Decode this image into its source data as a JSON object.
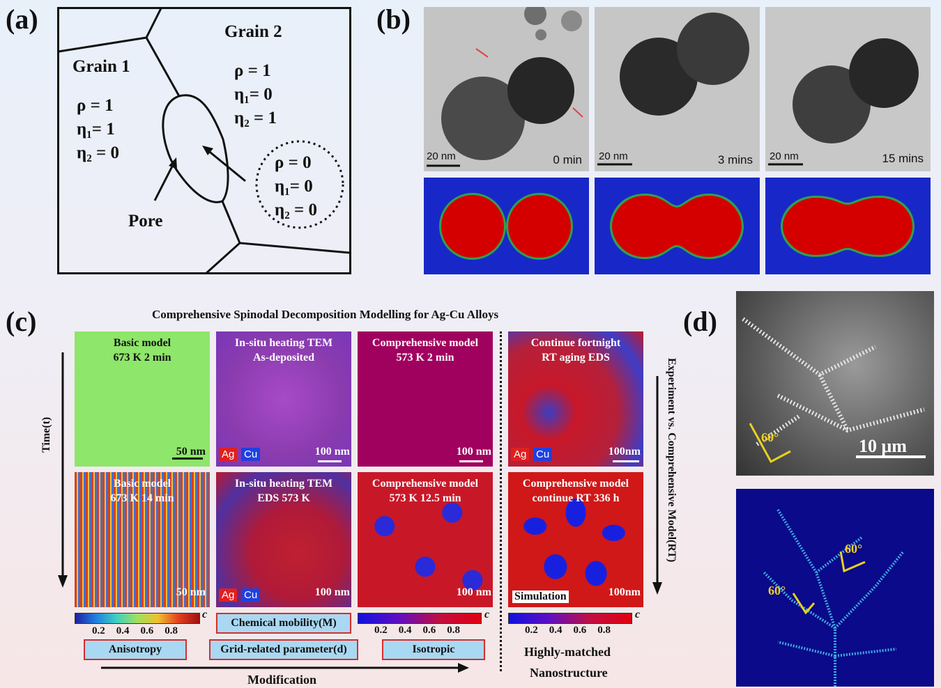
{
  "panel_labels": {
    "a": "(a)",
    "b": "(b)",
    "c": "(c)",
    "d": "(d)"
  },
  "panel_a": {
    "grain1": {
      "title": "Grain 1",
      "rho": "ρ = 1",
      "eta1": "η₁= 1",
      "eta2": "η₂ = 0"
    },
    "grain2": {
      "title": "Grain 2",
      "rho": "ρ = 1",
      "eta1": "η₁= 0",
      "eta2": "η₂ = 1"
    },
    "pore_region": {
      "rho": "ρ = 0",
      "eta1": "η₁= 0",
      "eta2": "η₂ = 0"
    },
    "pore_label": "Pore"
  },
  "panel_b": {
    "frames": [
      {
        "scale": "20 nm",
        "time": "0 min"
      },
      {
        "scale": "20 nm",
        "time": "3 mins"
      },
      {
        "scale": "20 nm",
        "time": "15 mins"
      }
    ]
  },
  "panel_c": {
    "title": "Comprehensive Spinodal Decomposition Modelling for Ag-Cu Alloys",
    "time_axis": "Time(t)",
    "right_axis": "Experiment vs. Comprehensive Model(RT)",
    "tiles": [
      {
        "label": "Basic model\n673 K 2 min",
        "scale": "50 nm"
      },
      {
        "label": "In-situ heating TEM\nAs-deposited",
        "scale": "100 nm",
        "ag": "Ag",
        "cu": "Cu"
      },
      {
        "label": "Comprehensive model\n573 K 2 min",
        "scale": "100 nm"
      },
      {
        "label": "Continue fortnight\nRT aging EDS",
        "scale": "100nm",
        "ag": "Ag",
        "cu": "Cu"
      },
      {
        "label": "Basic model\n673 K 14 min",
        "scale": "50 nm"
      },
      {
        "label": "In-situ heating TEM\nEDS 573 K",
        "scale": "100 nm",
        "ag": "Ag",
        "cu": "Cu"
      },
      {
        "label": "Comprehensive model\n573 K 12.5 min",
        "scale": "100 nm"
      },
      {
        "label": "Comprehensive model\ncontinue RT 336 h",
        "scale": "100nm",
        "sim": "Simulation"
      }
    ],
    "colorbar_symbol": "c",
    "colorbar_ticks": [
      "0.2",
      "0.4",
      "0.6",
      "0.8"
    ],
    "boxes": {
      "anisotropy": "Anisotropy",
      "chem_mobility": "Chemical mobility(M)",
      "grid_param": "Grid-related parameter(d)",
      "isotropic": "Isotropic"
    },
    "modification": "Modification",
    "highly_matched": "Highly-matched",
    "nanostructure": "Nanostructure"
  },
  "panel_d": {
    "angle_sem": "60°",
    "scale": "10 μm",
    "angle_sim_1": "60°",
    "angle_sim_2": "60°"
  }
}
